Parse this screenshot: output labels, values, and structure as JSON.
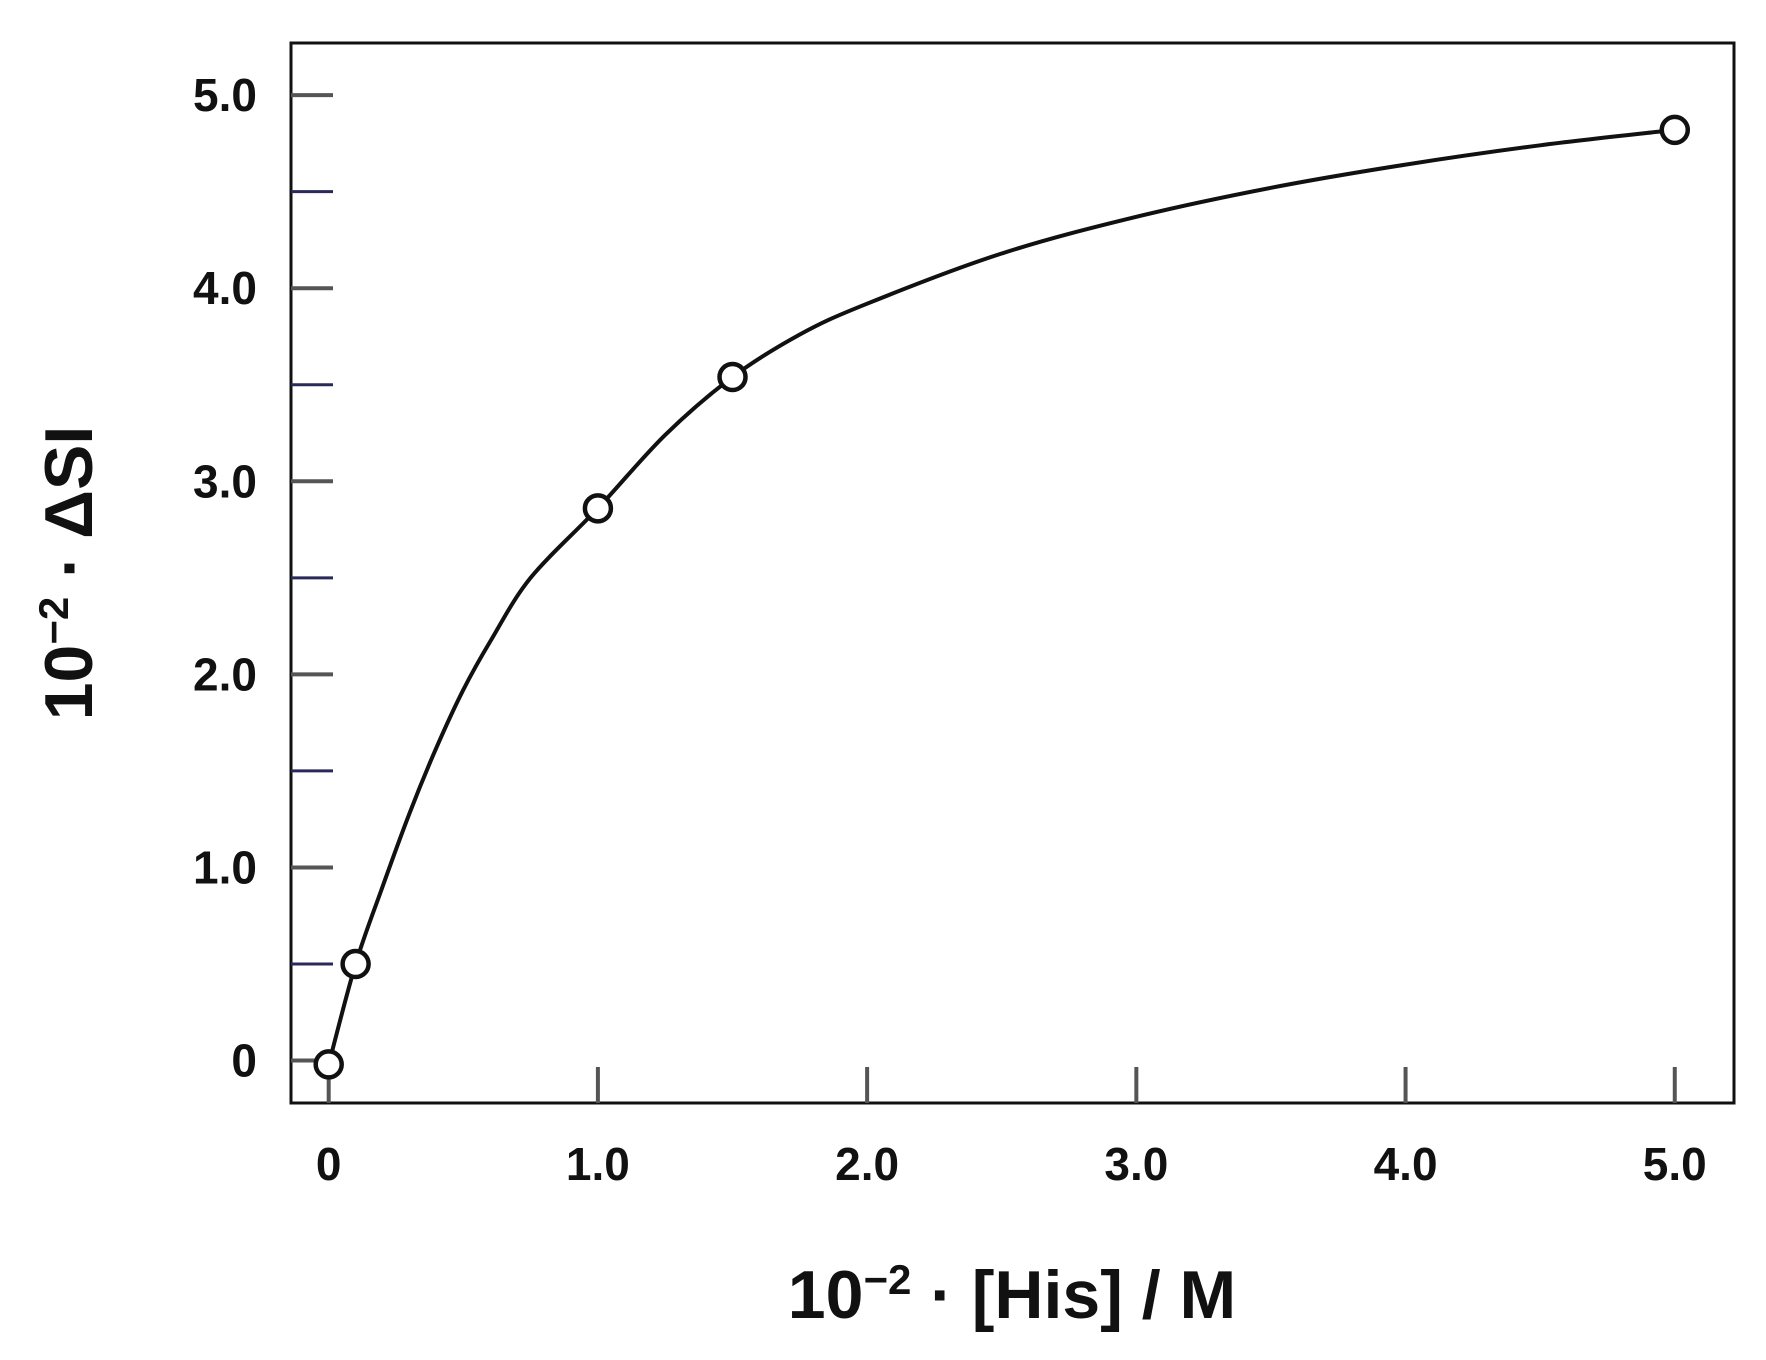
{
  "chart_data": {
    "type": "scatter",
    "title": "",
    "xlabel": {
      "prefix": "10",
      "exponent": "−2",
      "rest": " · [His] / M"
    },
    "ylabel": {
      "prefix": "10",
      "exponent": "−2",
      "rest": " · ΔSI"
    },
    "xlim": [
      -0.14,
      5.22
    ],
    "ylim": [
      -0.22,
      5.27
    ],
    "x_ticks": [
      {
        "value": 0,
        "label": "0"
      },
      {
        "value": 1,
        "label": "1.0"
      },
      {
        "value": 2,
        "label": "2.0"
      },
      {
        "value": 3,
        "label": "3.0"
      },
      {
        "value": 4,
        "label": "4.0"
      },
      {
        "value": 5,
        "label": "5.0"
      }
    ],
    "y_ticks": [
      {
        "value": 0,
        "label": "0"
      },
      {
        "value": 1,
        "label": "1.0"
      },
      {
        "value": 2,
        "label": "2.0"
      },
      {
        "value": 3,
        "label": "3.0"
      },
      {
        "value": 4,
        "label": "4.0"
      },
      {
        "value": 5,
        "label": "5.0"
      }
    ],
    "y_minor_ticks": [
      0.5,
      1.5,
      2.5,
      3.5,
      4.5
    ],
    "grid": false,
    "series": [
      {
        "marker": "open-circle",
        "color": "#111111",
        "points": [
          {
            "x": 0.0,
            "y": -0.02
          },
          {
            "x": 0.1,
            "y": 0.5
          },
          {
            "x": 1.0,
            "y": 2.86
          },
          {
            "x": 1.5,
            "y": 3.54
          },
          {
            "x": 5.0,
            "y": 4.82
          }
        ]
      }
    ],
    "fit_curve": {
      "model": "saturation",
      "color": "#111111",
      "x": [
        0,
        0.1,
        0.2,
        0.3,
        0.4,
        0.5,
        0.6,
        0.75,
        1.0,
        1.25,
        1.5,
        1.75,
        2.0,
        2.5,
        3.0,
        3.5,
        4.0,
        4.5,
        5.0
      ],
      "y": [
        -0.02,
        0.5,
        0.9,
        1.28,
        1.62,
        1.92,
        2.17,
        2.5,
        2.86,
        3.24,
        3.54,
        3.76,
        3.92,
        4.18,
        4.37,
        4.52,
        4.64,
        4.74,
        4.82
      ]
    }
  }
}
